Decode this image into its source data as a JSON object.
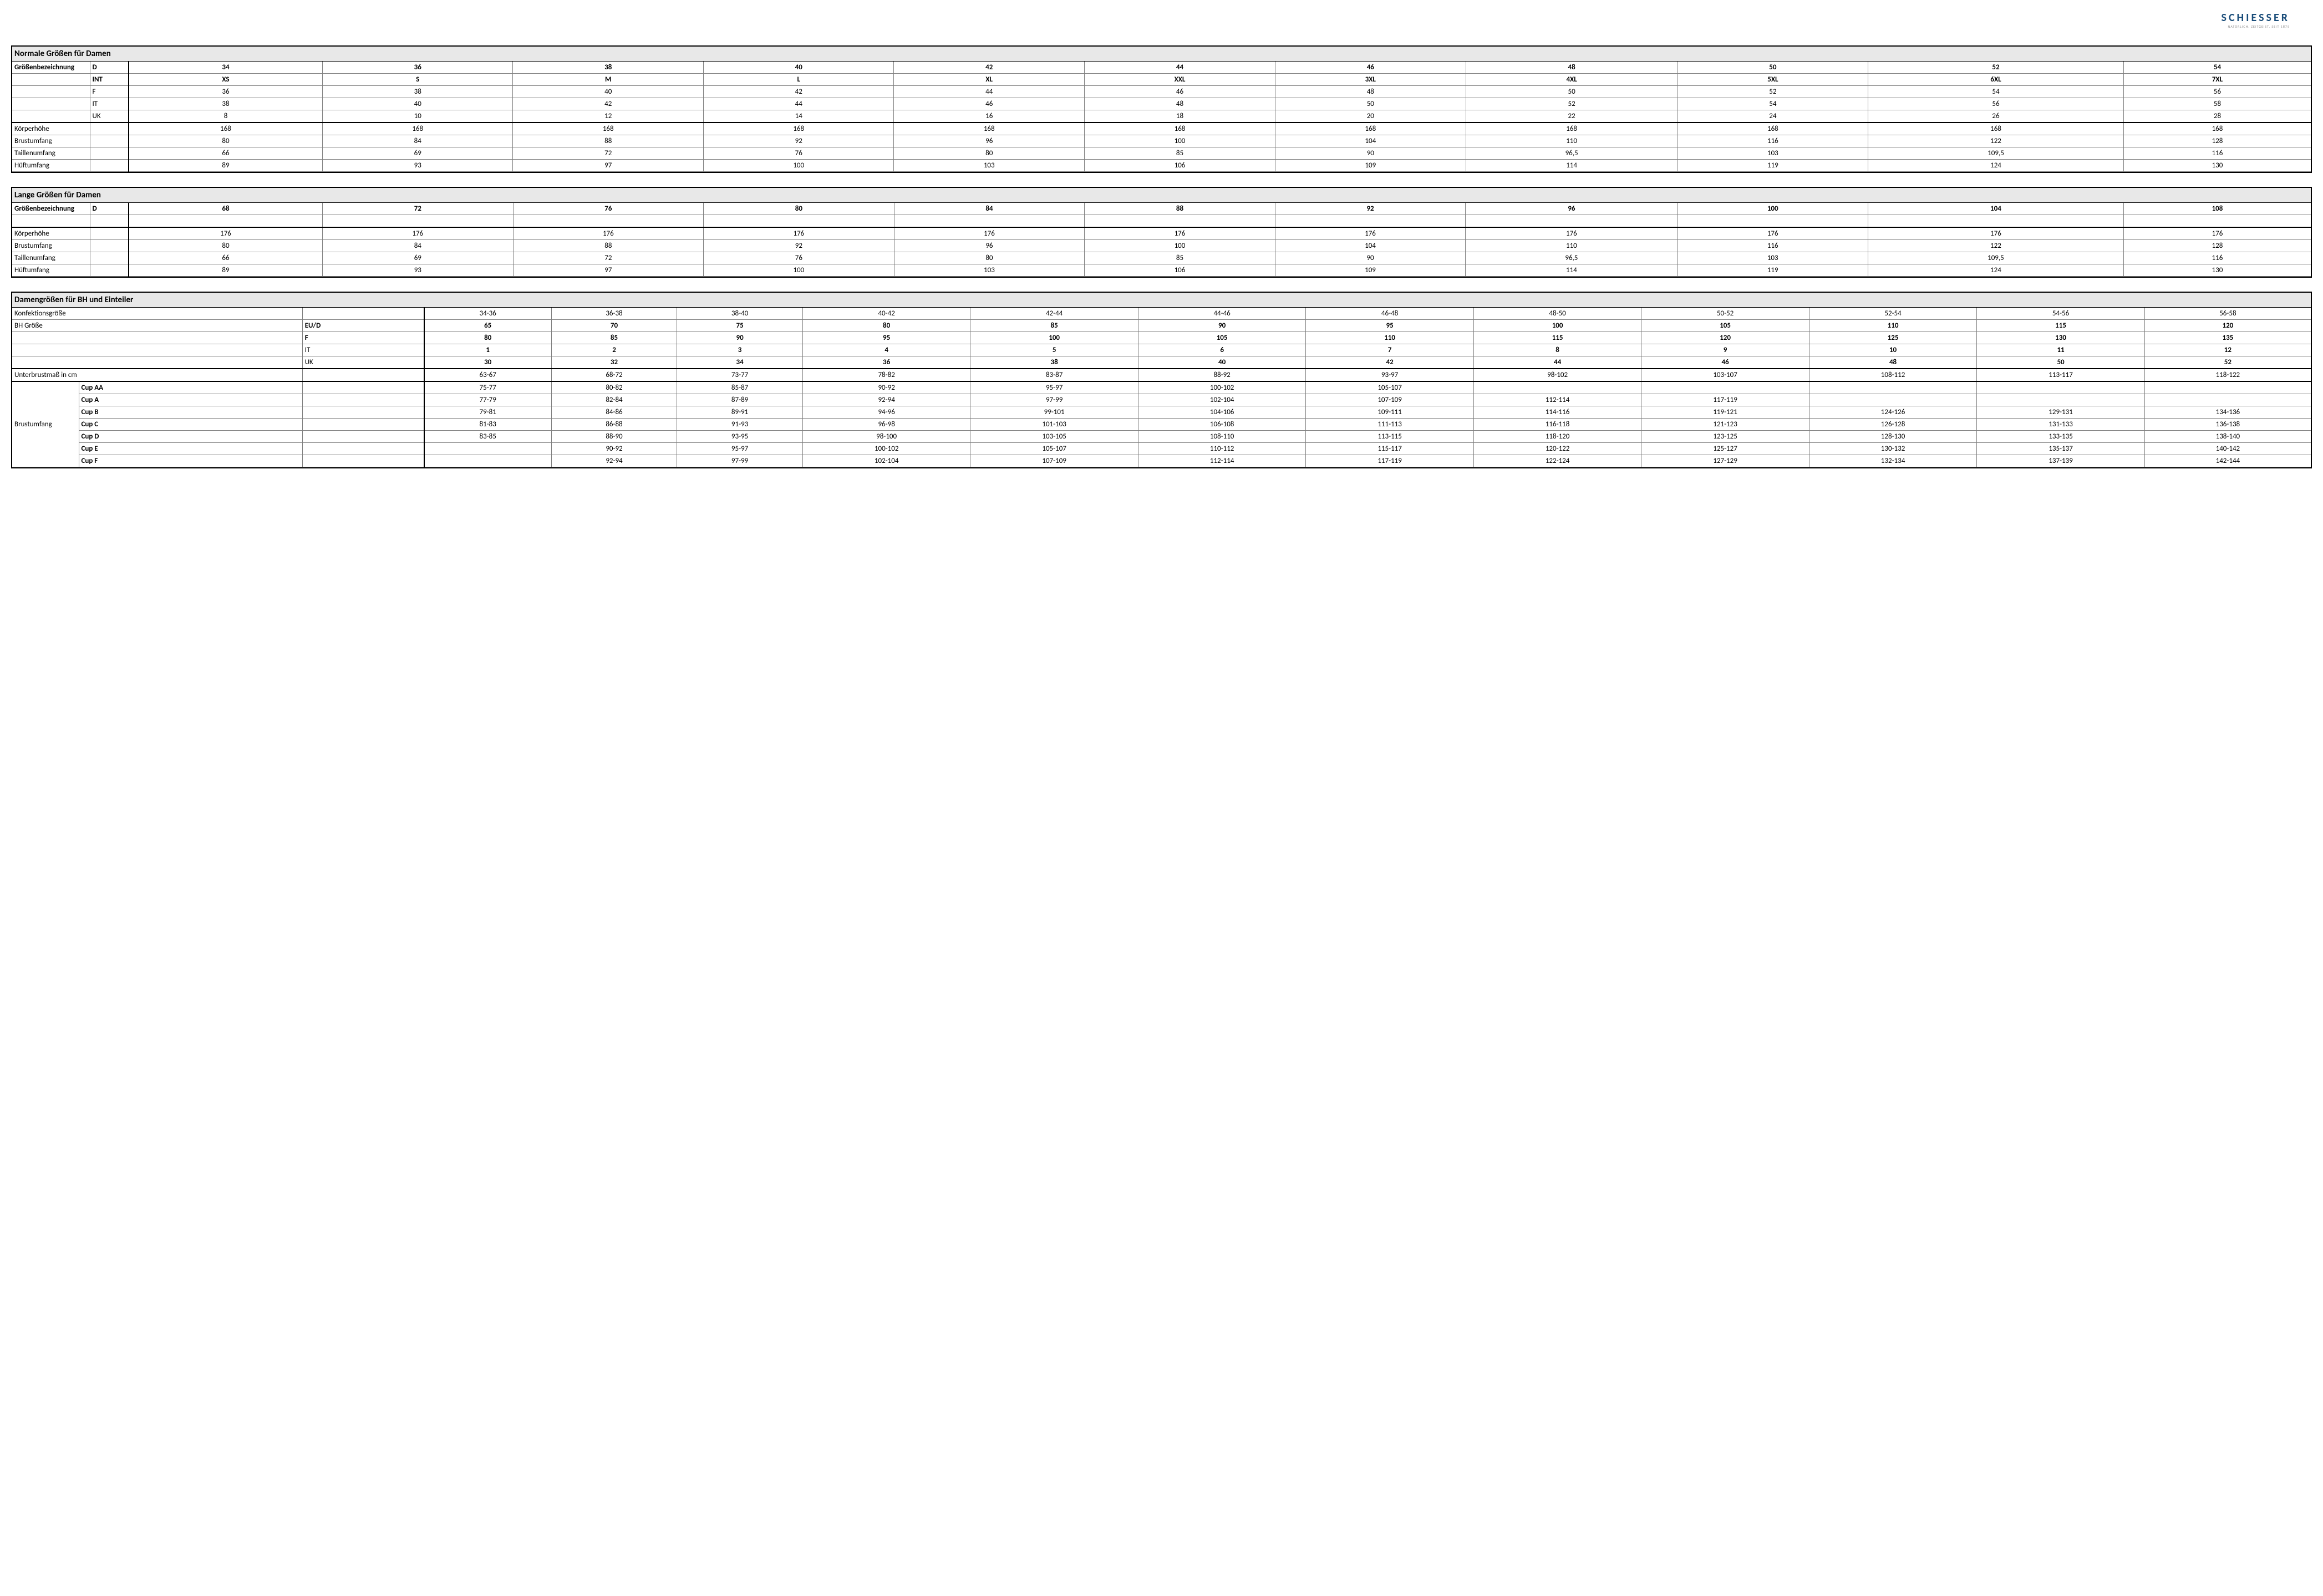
{
  "logo": {
    "main": "SCHIESSER",
    "sub": "NATÜRLICH. ZEITGEIST. SEIT 1875"
  },
  "colors": {
    "logo": "#1a4d7a",
    "title_bg": "#e8e8e8",
    "border": "#000000",
    "grid": "#808080"
  },
  "t1": {
    "title": "Normale Größen für Damen",
    "size_label": "Größenbezeichnung",
    "systems": [
      "D",
      "INT",
      "F",
      "IT",
      "UK"
    ],
    "system_rows": {
      "D": [
        "34",
        "36",
        "38",
        "40",
        "42",
        "44",
        "46",
        "48",
        "50",
        "52",
        "54"
      ],
      "INT": [
        "XS",
        "S",
        "M",
        "L",
        "XL",
        "XXL",
        "3XL",
        "4XL",
        "5XL",
        "6XL",
        "7XL"
      ],
      "F": [
        "36",
        "38",
        "40",
        "42",
        "44",
        "46",
        "48",
        "50",
        "52",
        "54",
        "56"
      ],
      "IT": [
        "38",
        "40",
        "42",
        "44",
        "46",
        "48",
        "50",
        "52",
        "54",
        "56",
        "58"
      ],
      "UK": [
        "8",
        "10",
        "12",
        "14",
        "16",
        "18",
        "20",
        "22",
        "24",
        "26",
        "28"
      ]
    },
    "measures": [
      {
        "label": "Körperhöhe",
        "v": [
          "168",
          "168",
          "168",
          "168",
          "168",
          "168",
          "168",
          "168",
          "168",
          "168",
          "168"
        ]
      },
      {
        "label": "Brustumfang",
        "v": [
          "80",
          "84",
          "88",
          "92",
          "96",
          "100",
          "104",
          "110",
          "116",
          "122",
          "128"
        ]
      },
      {
        "label": "Taillenumfang",
        "v": [
          "66",
          "69",
          "72",
          "76",
          "80",
          "85",
          "90",
          "96,5",
          "103",
          "109,5",
          "116"
        ]
      },
      {
        "label": "Hüftumfang",
        "v": [
          "89",
          "93",
          "97",
          "100",
          "103",
          "106",
          "109",
          "114",
          "119",
          "124",
          "130"
        ]
      }
    ]
  },
  "t2": {
    "title": "Lange Größen für Damen",
    "size_label": "Größenbezeichnung",
    "systems": [
      "D"
    ],
    "system_rows": {
      "D": [
        "68",
        "72",
        "76",
        "80",
        "84",
        "88",
        "92",
        "96",
        "100",
        "104",
        "108"
      ]
    },
    "measures": [
      {
        "label": "Körperhöhe",
        "v": [
          "176",
          "176",
          "176",
          "176",
          "176",
          "176",
          "176",
          "176",
          "176",
          "176",
          "176"
        ]
      },
      {
        "label": "Brustumfang",
        "v": [
          "80",
          "84",
          "88",
          "92",
          "96",
          "100",
          "104",
          "110",
          "116",
          "122",
          "128"
        ]
      },
      {
        "label": "Taillenumfang",
        "v": [
          "66",
          "69",
          "72",
          "76",
          "80",
          "85",
          "90",
          "96,5",
          "103",
          "109,5",
          "116"
        ]
      },
      {
        "label": "Hüftumfang",
        "v": [
          "89",
          "93",
          "97",
          "100",
          "103",
          "106",
          "109",
          "114",
          "119",
          "124",
          "130"
        ]
      }
    ]
  },
  "t3": {
    "title": "Damengrößen für BH und Einteiler",
    "konf_label": "Konfektionsgröße",
    "konf": [
      "34-36",
      "36-38",
      "38-40",
      "40-42",
      "42-44",
      "44-46",
      "46-48",
      "48-50",
      "50-52",
      "52-54",
      "54-56",
      "56-58"
    ],
    "bh_label": "BH Größe",
    "systems": [
      "EU/D",
      "F",
      "IT",
      "UK"
    ],
    "system_rows": {
      "EU/D": [
        "65",
        "70",
        "75",
        "80",
        "85",
        "90",
        "95",
        "100",
        "105",
        "110",
        "115",
        "120"
      ],
      "F": [
        "80",
        "85",
        "90",
        "95",
        "100",
        "105",
        "110",
        "115",
        "120",
        "125",
        "130",
        "135"
      ],
      "IT": [
        "1",
        "2",
        "3",
        "4",
        "5",
        "6",
        "7",
        "8",
        "9",
        "10",
        "11",
        "12"
      ],
      "UK": [
        "30",
        "32",
        "34",
        "36",
        "38",
        "40",
        "42",
        "44",
        "46",
        "48",
        "50",
        "52"
      ]
    },
    "under_label": "Unterbrustmaß in cm",
    "under": [
      "63-67",
      "68-72",
      "73-77",
      "78-82",
      "83-87",
      "88-92",
      "93-97",
      "98-102",
      "103-107",
      "108-112",
      "113-117",
      "118-122"
    ],
    "bust_label": "Brustumfang",
    "cups": [
      {
        "label": "Cup AA",
        "v": [
          "75-77",
          "80-82",
          "85-87",
          "90-92",
          "95-97",
          "100-102",
          "105-107",
          "",
          "",
          "",
          "",
          ""
        ]
      },
      {
        "label": "Cup A",
        "v": [
          "77-79",
          "82-84",
          "87-89",
          "92-94",
          "97-99",
          "102-104",
          "107-109",
          "112-114",
          "117-119",
          "",
          "",
          ""
        ]
      },
      {
        "label": "Cup B",
        "v": [
          "79-81",
          "84-86",
          "89-91",
          "94-96",
          "99-101",
          "104-106",
          "109-111",
          "114-116",
          "119-121",
          "124-126",
          "129-131",
          "134-136"
        ]
      },
      {
        "label": "Cup C",
        "v": [
          "81-83",
          "86-88",
          "91-93",
          "96-98",
          "101-103",
          "106-108",
          "111-113",
          "116-118",
          "121-123",
          "126-128",
          "131-133",
          "136-138"
        ]
      },
      {
        "label": "Cup D",
        "v": [
          "83-85",
          "88-90",
          "93-95",
          "98-100",
          "103-105",
          "108-110",
          "113-115",
          "118-120",
          "123-125",
          "128-130",
          "133-135",
          "138-140"
        ]
      },
      {
        "label": "Cup E",
        "v": [
          "",
          "90-92",
          "95-97",
          "100-102",
          "105-107",
          "110-112",
          "115-117",
          "120-122",
          "125-127",
          "130-132",
          "135-137",
          "140-142"
        ]
      },
      {
        "label": "Cup F",
        "v": [
          "",
          "92-94",
          "97-99",
          "102-104",
          "107-109",
          "112-114",
          "117-119",
          "122-124",
          "127-129",
          "132-134",
          "137-139",
          "142-144"
        ]
      }
    ]
  }
}
